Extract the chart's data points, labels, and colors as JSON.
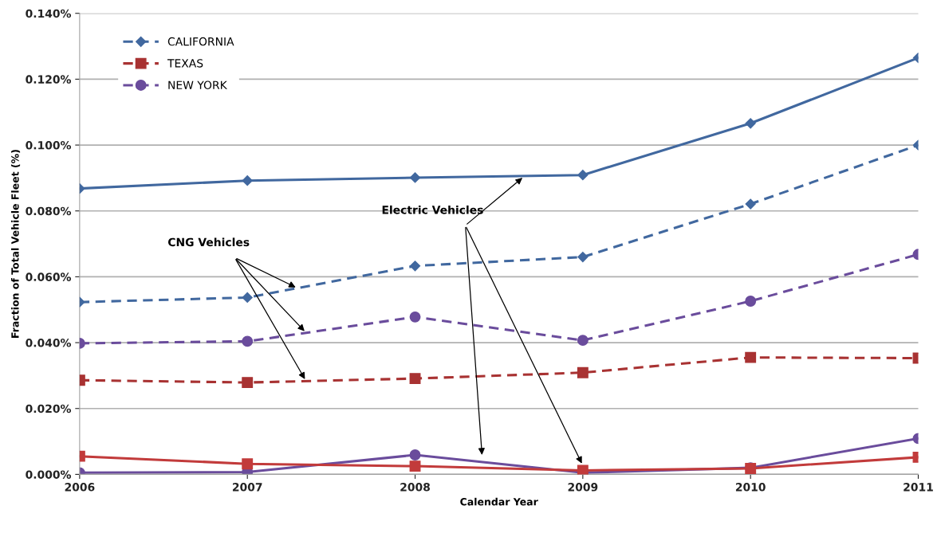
{
  "chart_data": {
    "type": "line",
    "xlabel": "Calendar Year",
    "ylabel": "Fraction of Total Vehicle Fleet (%)",
    "x": [
      2006,
      2007,
      2008,
      2009,
      2010,
      2011
    ],
    "xlim": [
      2006,
      2011
    ],
    "xticks": [
      2006,
      2007,
      2008,
      2009,
      2010,
      2011
    ],
    "ylim": [
      0,
      0.14
    ],
    "yticks": [
      {
        "value": 0,
        "label": "0.000%"
      },
      {
        "value": 0.02,
        "label": "0.020%"
      },
      {
        "value": 0.04,
        "label": "0.040%"
      },
      {
        "value": 0.06,
        "label": "0.060%"
      },
      {
        "value": 0.08,
        "label": "0.080%"
      },
      {
        "value": 0.1,
        "label": "0.100%"
      },
      {
        "value": 0.12,
        "label": "0.120%"
      },
      {
        "value": 0.14,
        "label": "0.140%"
      }
    ],
    "grid": "y",
    "legend": "top left",
    "series": [
      {
        "name": "CALIFORNIA",
        "color": "#41689f",
        "line_style": "dashed",
        "marker": "diamond",
        "values": [
          0.0523,
          0.0537,
          0.0633,
          0.066,
          0.0821,
          0.1
        ]
      },
      {
        "name": "TEXAS",
        "color": "#a83232",
        "line_style": "dashed",
        "marker": "square",
        "values": [
          0.0286,
          0.0279,
          0.0291,
          0.0309,
          0.0355,
          0.0353
        ]
      },
      {
        "name": "NEW YORK",
        "color": "#6a4c9c",
        "line_style": "dashed",
        "marker": "circle",
        "values": [
          0.0398,
          0.0404,
          0.0478,
          0.0407,
          0.0526,
          0.0668
        ]
      },
      {
        "color": "#41689f",
        "line_style": "solid",
        "marker": "diamond",
        "values": [
          0.0868,
          0.0892,
          0.0901,
          0.0909,
          0.1066,
          0.1265
        ]
      },
      {
        "color": "#c23b3b",
        "line_style": "solid",
        "marker": "square",
        "values": [
          0.0055,
          0.0032,
          0.0025,
          0.0012,
          0.0018,
          0.0052
        ]
      },
      {
        "color": "#6a4c9c",
        "line_style": "solid",
        "marker": "circle",
        "values": [
          0.0005,
          0.0007,
          0.0059,
          0.0005,
          0.002,
          0.0109
        ]
      }
    ],
    "annotations": [
      {
        "text": "Electric Vehicles",
        "x": 2008.65,
        "y": 0.0905
      },
      {
        "text": "CNG Vehicles",
        "x": 2007.3,
        "y": 0.0565
      }
    ]
  }
}
